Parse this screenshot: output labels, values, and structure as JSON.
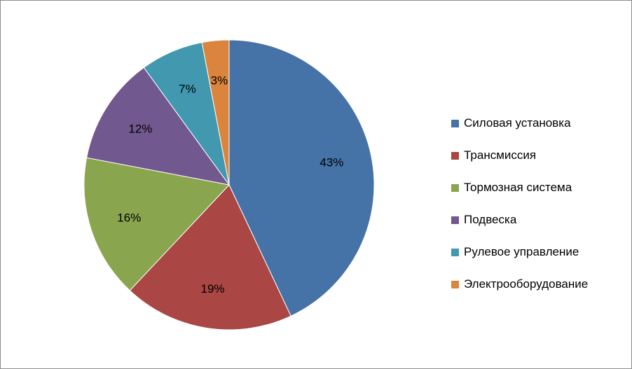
{
  "chart_data": {
    "type": "pie",
    "title": "",
    "start_angle_deg": 0,
    "direction": "clockwise",
    "legend_position": "right",
    "slices": [
      {
        "label": "Силовая установка",
        "value": 43,
        "display": "43%",
        "color": "#4572a7"
      },
      {
        "label": "Трансмиссия",
        "value": 19,
        "display": "19%",
        "color": "#aa4643"
      },
      {
        "label": "Тормозная система",
        "value": 16,
        "display": "16%",
        "color": "#89a54e"
      },
      {
        "label": "Подвеска",
        "value": 12,
        "display": "12%",
        "color": "#71588f"
      },
      {
        "label": "Рулевое управление",
        "value": 7,
        "display": "7%",
        "color": "#4198af"
      },
      {
        "label": "Электрооборудование",
        "value": 3,
        "display": "3%",
        "color": "#db843d"
      }
    ]
  }
}
